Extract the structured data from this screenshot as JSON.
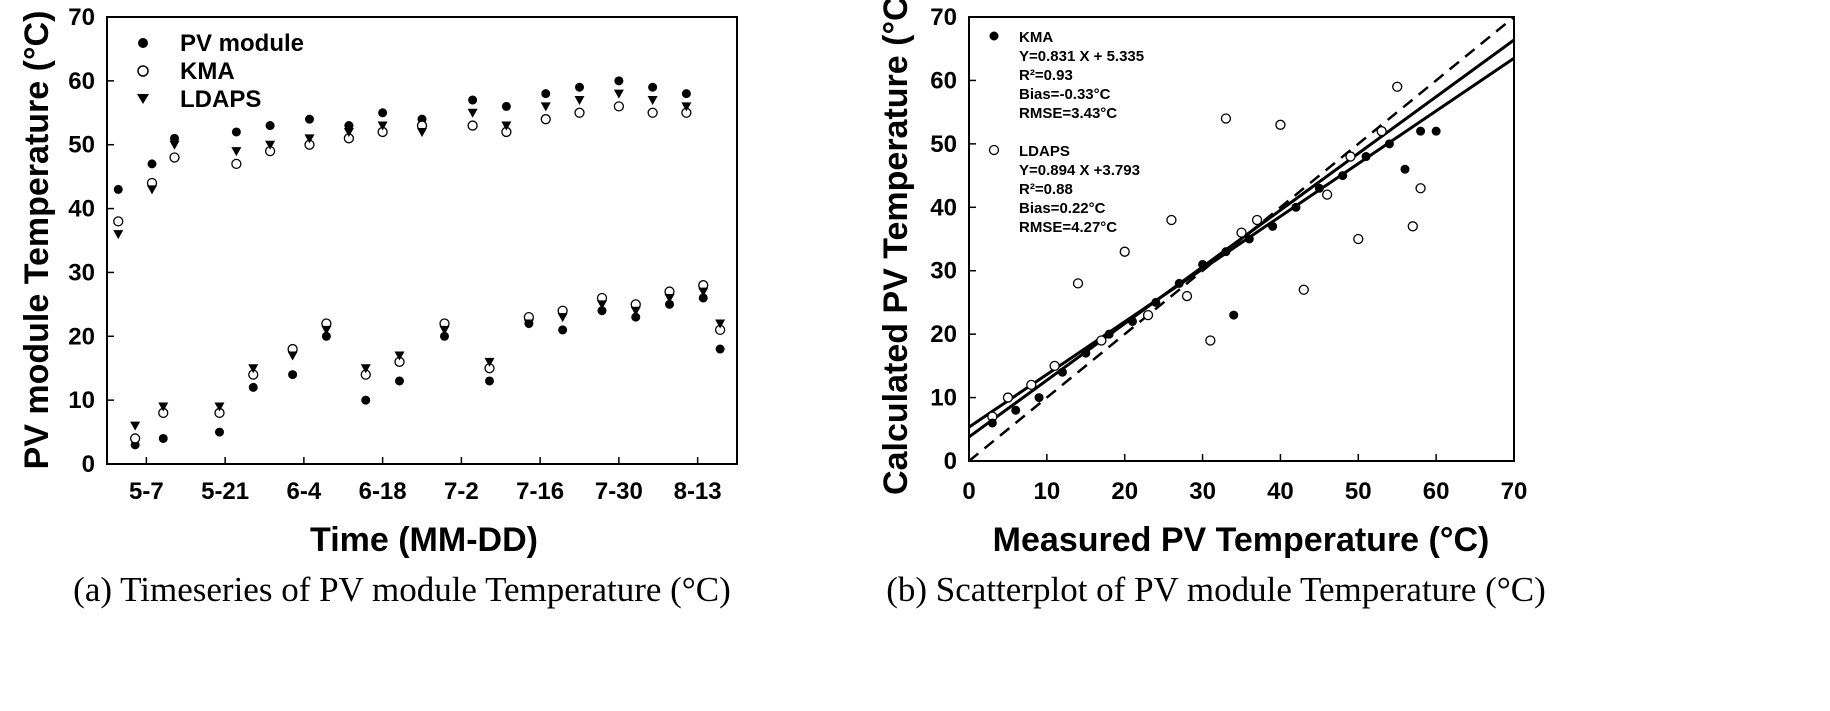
{
  "figure": {
    "caption_a": "(a) Timeseries of PV module Temperature (°C)",
    "caption_b": "(b) Scatterplot of PV module Temperature (°C)"
  },
  "chart_data": [
    {
      "type": "scatter",
      "title": "",
      "xlabel": "Time (MM-DD)",
      "ylabel": "PV module Temperature (°C)",
      "ylim": [
        0,
        70
      ],
      "yticks": [
        0,
        10,
        20,
        30,
        40,
        50,
        60,
        70
      ],
      "xlim": [
        "04-30",
        "08-20"
      ],
      "xticks": [
        "5-7",
        "5-21",
        "6-4",
        "6-18",
        "7-2",
        "7-16",
        "7-30",
        "8-13"
      ],
      "legend_position": "top-left",
      "series": [
        {
          "name": "PV module",
          "marker": "filled-circle",
          "color": "#000000",
          "x": [
            "05-02",
            "05-05",
            "05-08",
            "05-10",
            "05-12",
            "05-20",
            "05-23",
            "05-26",
            "05-29",
            "06-02",
            "06-05",
            "06-08",
            "06-12",
            "06-15",
            "06-18",
            "06-21",
            "06-25",
            "06-29",
            "07-04",
            "07-07",
            "07-10",
            "07-14",
            "07-17",
            "07-20",
            "07-23",
            "07-27",
            "07-30",
            "08-02",
            "08-05",
            "08-08",
            "08-11",
            "08-14",
            "08-17"
          ],
          "y": [
            43,
            3,
            47,
            4,
            51,
            5,
            52,
            12,
            53,
            14,
            54,
            20,
            53,
            10,
            55,
            13,
            54,
            20,
            57,
            13,
            56,
            22,
            58,
            21,
            59,
            24,
            60,
            23,
            59,
            25,
            58,
            26,
            18
          ]
        },
        {
          "name": "KMA",
          "marker": "open-circle",
          "color": "#000000",
          "x": [
            "05-02",
            "05-05",
            "05-08",
            "05-10",
            "05-12",
            "05-20",
            "05-23",
            "05-26",
            "05-29",
            "06-02",
            "06-05",
            "06-08",
            "06-12",
            "06-15",
            "06-18",
            "06-21",
            "06-25",
            "06-29",
            "07-04",
            "07-07",
            "07-10",
            "07-14",
            "07-17",
            "07-20",
            "07-23",
            "07-27",
            "07-30",
            "08-02",
            "08-05",
            "08-08",
            "08-11",
            "08-14",
            "08-17"
          ],
          "y": [
            38,
            4,
            44,
            8,
            48,
            8,
            47,
            14,
            49,
            18,
            50,
            22,
            51,
            14,
            52,
            16,
            53,
            22,
            53,
            15,
            52,
            23,
            54,
            24,
            55,
            26,
            56,
            25,
            55,
            27,
            55,
            28,
            21
          ]
        },
        {
          "name": "LDAPS",
          "marker": "filled-triangle-down",
          "color": "#000000",
          "x": [
            "05-02",
            "05-05",
            "05-08",
            "05-10",
            "05-12",
            "05-20",
            "05-23",
            "05-26",
            "05-29",
            "06-02",
            "06-05",
            "06-08",
            "06-12",
            "06-15",
            "06-18",
            "06-21",
            "06-25",
            "06-29",
            "07-04",
            "07-07",
            "07-10",
            "07-14",
            "07-17",
            "07-20",
            "07-23",
            "07-27",
            "07-30",
            "08-02",
            "08-05",
            "08-08",
            "08-11",
            "08-14",
            "08-17"
          ],
          "y": [
            36,
            6,
            43,
            9,
            50,
            9,
            49,
            15,
            50,
            17,
            51,
            21,
            52,
            15,
            53,
            17,
            52,
            21,
            55,
            16,
            53,
            22,
            56,
            23,
            57,
            25,
            58,
            24,
            57,
            26,
            56,
            27,
            22
          ]
        }
      ]
    },
    {
      "type": "scatter",
      "title": "",
      "xlabel": "Measured PV Temperature (°C)",
      "ylabel": "Calculated PV Temperature (°C)",
      "xlim": [
        0,
        70
      ],
      "ylim": [
        0,
        70
      ],
      "xticks": [
        0,
        10,
        20,
        30,
        40,
        50,
        60,
        70
      ],
      "yticks": [
        0,
        10,
        20,
        30,
        40,
        50,
        60,
        70
      ],
      "legend_position": "top-left",
      "annotations": {
        "kma": [
          "KMA",
          "Y=0.831 X + 5.335",
          "R²=0.93",
          "Bias=-0.33°C",
          "RMSE=3.43°C"
        ],
        "ldaps": [
          "LDAPS",
          "Y=0.894 X +3.793",
          "R²=0.88",
          "Bias=0.22°C",
          "RMSE=4.27°C"
        ]
      },
      "series": [
        {
          "name": "KMA",
          "marker": "filled-circle",
          "color": "#000000",
          "x": [
            3,
            6,
            9,
            12,
            15,
            18,
            21,
            24,
            27,
            30,
            33,
            34,
            36,
            39,
            42,
            45,
            48,
            51,
            54,
            56,
            58,
            60
          ],
          "y": [
            6,
            8,
            10,
            14,
            17,
            20,
            22,
            25,
            28,
            31,
            33,
            23,
            35,
            37,
            40,
            43,
            45,
            48,
            50,
            46,
            52,
            52
          ]
        },
        {
          "name": "LDAPS",
          "marker": "open-circle",
          "color": "#000000",
          "x": [
            3,
            5,
            8,
            11,
            14,
            17,
            20,
            23,
            26,
            28,
            31,
            33,
            35,
            37,
            40,
            43,
            46,
            49,
            50,
            53,
            55,
            57,
            58
          ],
          "y": [
            7,
            10,
            12,
            15,
            28,
            19,
            33,
            23,
            38,
            26,
            19,
            54,
            36,
            38,
            53,
            27,
            42,
            48,
            35,
            52,
            59,
            37,
            43
          ]
        }
      ],
      "fits": [
        {
          "name": "KMA",
          "slope": 0.831,
          "intercept": 5.335
        },
        {
          "name": "LDAPS",
          "slope": 0.894,
          "intercept": 3.793
        },
        {
          "name": "1:1",
          "slope": 1,
          "intercept": 0,
          "style": "dashed"
        }
      ]
    }
  ]
}
